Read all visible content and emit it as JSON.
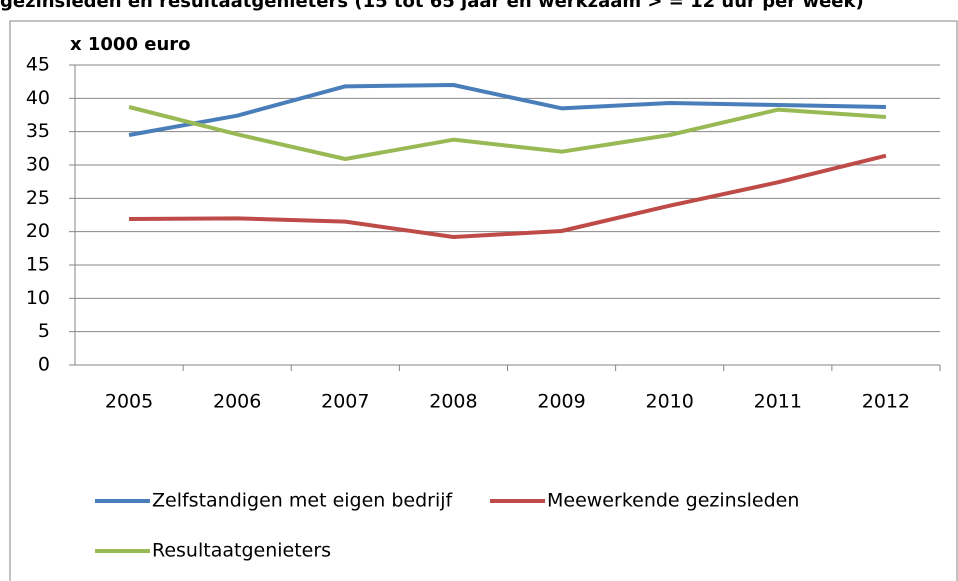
{
  "chart_data": {
    "type": "line",
    "title": "gezinsleden en resultaatgenieters (15 tot 65 jaar en werkzaam > = 12 uur per week)",
    "y_axis_label": "x 1000 euro",
    "categories": [
      "2005",
      "2006",
      "2007",
      "2008",
      "2009",
      "2010",
      "2011",
      "2012"
    ],
    "series": [
      {
        "name": "Zelfstandigen met eigen bedrijf",
        "color": "#4a7ebb",
        "values": [
          34.5,
          37.4,
          41.8,
          42.0,
          38.5,
          39.3,
          39.0,
          38.7
        ]
      },
      {
        "name": "Meewerkende gezinsleden",
        "color": "#be4b48",
        "values": [
          21.9,
          22.0,
          21.5,
          19.2,
          20.1,
          23.9,
          27.4,
          31.4
        ]
      },
      {
        "name": "Resultaatgenieters",
        "color": "#98b954",
        "values": [
          38.7,
          34.6,
          30.9,
          33.8,
          32.0,
          34.5,
          38.3,
          37.2
        ]
      }
    ],
    "ylim": [
      0,
      45
    ],
    "yticks": [
      0,
      5,
      10,
      15,
      20,
      25,
      30,
      35,
      40,
      45
    ],
    "grid": true
  }
}
